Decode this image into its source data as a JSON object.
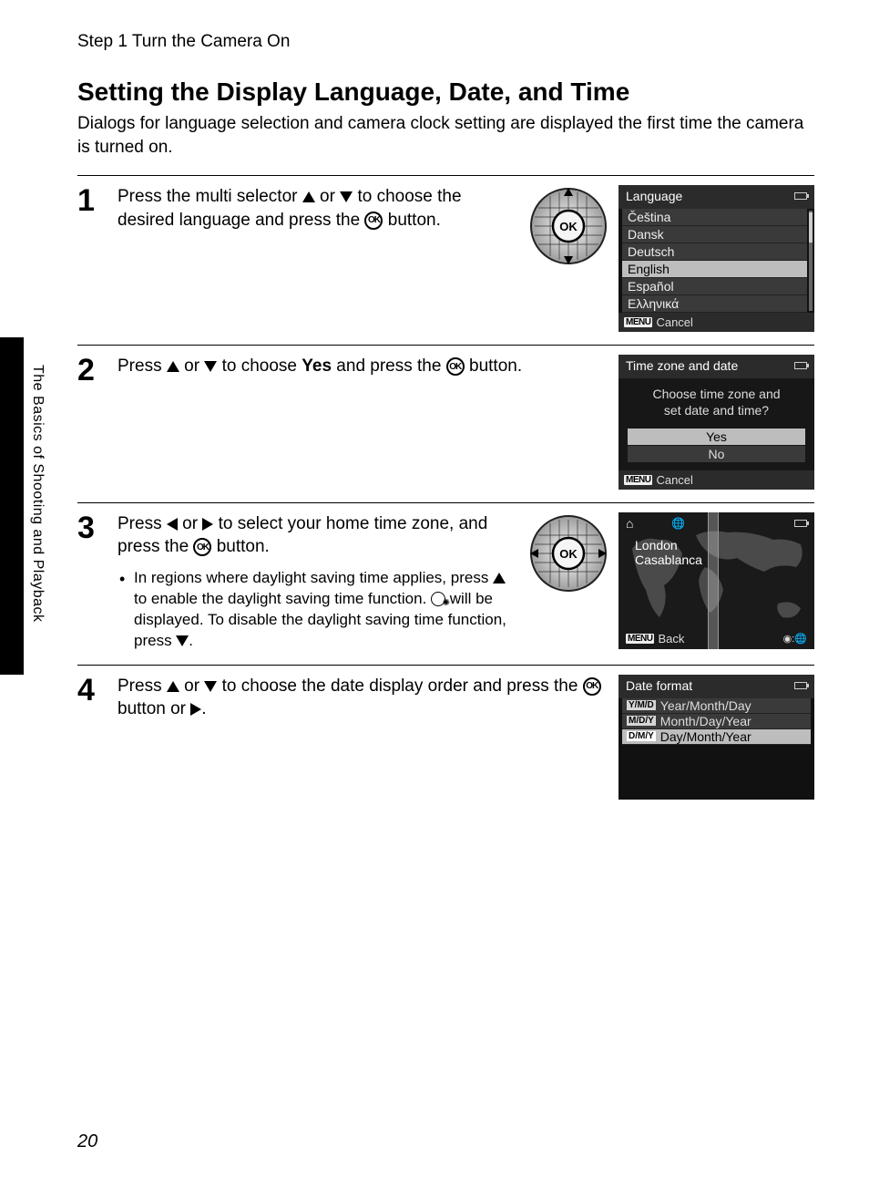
{
  "breadcrumb": "Step 1 Turn the Camera On",
  "title": "Setting the Display Language, Date, and Time",
  "intro": "Dialogs for language selection and camera clock setting are displayed the first time the camera is turned on.",
  "side_tab_label": "The Basics of Shooting and Playback",
  "page_number": "20",
  "ok_label": "OK",
  "menu_badge": "MENU",
  "steps": {
    "s1": {
      "num": "1",
      "text_pre": "Press the multi selector ",
      "text_mid": " or ",
      "text_post": " to choose the desired language and press the ",
      "text_end": " button.",
      "screen_title": "Language",
      "langs": [
        "Čeština",
        "Dansk",
        "Deutsch",
        "English",
        "Español",
        "Ελληνικά"
      ],
      "selected_index": 3,
      "cancel": "Cancel"
    },
    "s2": {
      "num": "2",
      "text_pre": "Press ",
      "text_mid": " or ",
      "text_post": " to choose ",
      "bold": "Yes",
      "text_after": " and press the ",
      "text_end": " button.",
      "screen_title": "Time zone and date",
      "prompt_l1": "Choose time zone and",
      "prompt_l2": "set date and time?",
      "yes": "Yes",
      "no": "No",
      "cancel": "Cancel"
    },
    "s3": {
      "num": "3",
      "text_pre": "Press ",
      "text_mid": " or ",
      "text_post": " to select your home time zone, and press the ",
      "text_end": " button.",
      "note_pre": "In regions where daylight saving time applies, press ",
      "note_mid": " to enable the daylight saving time function. ",
      "note_post": " will be displayed. To disable the daylight saving time function, press ",
      "note_end": ".",
      "city1": "London",
      "city2": "Casablanca",
      "back": "Back"
    },
    "s4": {
      "num": "4",
      "text_pre": "Press ",
      "text_mid": " or ",
      "text_post": " to choose the date display order and press the ",
      "text_after": " button or ",
      "text_end": ".",
      "screen_title": "Date format",
      "formats": [
        {
          "code": "Y/M/D",
          "label": "Year/Month/Day"
        },
        {
          "code": "M/D/Y",
          "label": "Month/Day/Year"
        },
        {
          "code": "D/M/Y",
          "label": "Day/Month/Year"
        }
      ],
      "selected_index": 2
    }
  },
  "colors": {
    "screen_bg": "#2b2b2b",
    "list_bg": "#111111",
    "row_bg": "#3a3a3a",
    "row_sel": "#bdbdbd",
    "text_light": "#eeeeee"
  }
}
